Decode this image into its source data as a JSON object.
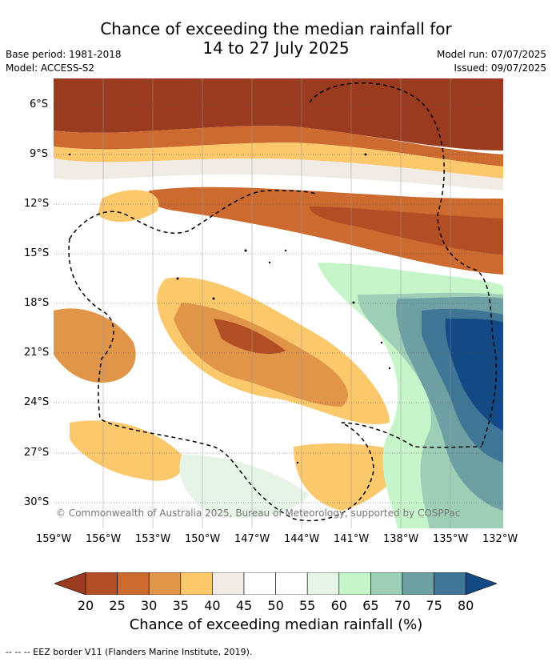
{
  "title": {
    "line1": "Chance of exceeding the median rainfall for",
    "line2": "14 to 27 July 2025"
  },
  "meta": {
    "base_period": "Base period: 1981-2018",
    "model": "Model: ACCESS-S2",
    "model_run": "Model run: 07/07/2025",
    "issued": "Issued: 09/07/2025"
  },
  "map": {
    "lat_labels": [
      "6°S",
      "9°S",
      "12°S",
      "15°S",
      "18°S",
      "21°S",
      "24°S",
      "27°S",
      "30°S"
    ],
    "lon_labels": [
      "159°W",
      "156°W",
      "153°W",
      "150°W",
      "147°W",
      "144°W",
      "141°W",
      "138°W",
      "135°W",
      "132°W"
    ],
    "copyright": "© Commonwealth of Australia 2025, Bureau of Meteorology, supported by COSPPac"
  },
  "colorbar": {
    "title": "Chance of exceeding median rainfall (%)",
    "ticks": [
      "20",
      "25",
      "30",
      "35",
      "40",
      "45",
      "50",
      "55",
      "60",
      "65",
      "70",
      "75",
      "80"
    ],
    "colors": [
      "#9a3a1f",
      "#b24e25",
      "#cc6a30",
      "#e09548",
      "#fbc86b",
      "#f0ece5",
      "#ffffff",
      "#ffffff",
      "#e6f4e6",
      "#c6f5c9",
      "#9dcfb7",
      "#6e9fa2",
      "#3f7696",
      "#134a86"
    ]
  },
  "footer": "--  --  -- EEZ border V11 (Flanders Marine Institute, 2019)."
}
